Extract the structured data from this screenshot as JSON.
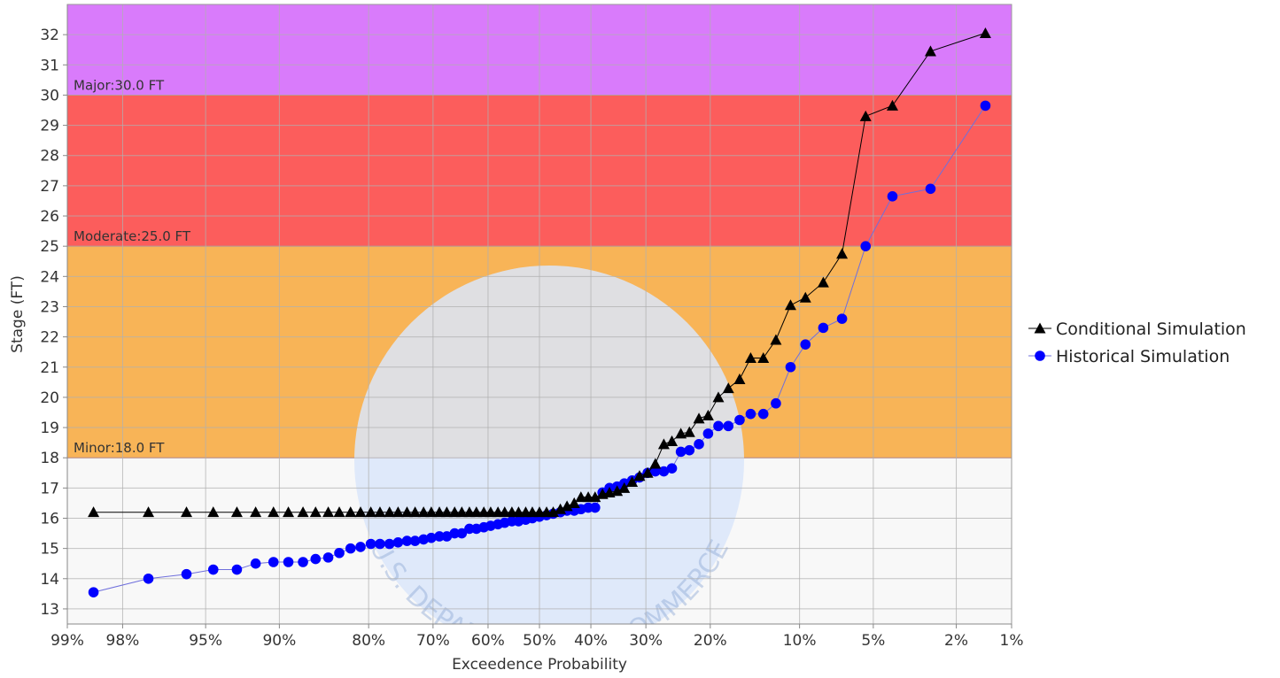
{
  "chart_data": {
    "type": "scatter",
    "xlabel": "Exceedence Probability",
    "ylabel": "Stage (FT)",
    "x_scale": "normal-probability",
    "x_reversed": true,
    "xlim": [
      99,
      1
    ],
    "ylim": [
      12.5,
      33
    ],
    "x_ticks": [
      99,
      98,
      95,
      90,
      80,
      70,
      60,
      50,
      40,
      30,
      20,
      10,
      5,
      2,
      1
    ],
    "x_tick_labels": [
      "99%",
      "98%",
      "95%",
      "90%",
      "80%",
      "70%",
      "60%",
      "50%",
      "40%",
      "30%",
      "20%",
      "10%",
      "5%",
      "2%",
      "1%"
    ],
    "y_ticks": [
      13,
      14,
      15,
      16,
      17,
      18,
      19,
      20,
      21,
      22,
      23,
      24,
      25,
      26,
      27,
      28,
      29,
      30,
      31,
      32
    ],
    "grid": true,
    "legend_position": "right",
    "flood_bands": [
      {
        "label": "Minor:18.0 FT",
        "from": 18,
        "to": 25,
        "color": "#f8b457"
      },
      {
        "label": "Moderate:25.0 FT",
        "from": 25,
        "to": 30,
        "color": "#fc5d5c"
      },
      {
        "label": "Major:30.0 FT",
        "from": 30,
        "to": 33,
        "color": "#d97bfb"
      }
    ],
    "series": [
      {
        "name": "Conditional Simulation",
        "marker": "triangle",
        "color": "#000000",
        "line_color": "#000000",
        "points": [
          [
            98.6,
            16.2
          ],
          [
            97.3,
            16.2
          ],
          [
            95.9,
            16.2
          ],
          [
            94.6,
            16.2
          ],
          [
            93.2,
            16.2
          ],
          [
            91.9,
            16.2
          ],
          [
            90.5,
            16.2
          ],
          [
            89.2,
            16.2
          ],
          [
            87.8,
            16.2
          ],
          [
            86.5,
            16.2
          ],
          [
            85.1,
            16.2
          ],
          [
            83.8,
            16.2
          ],
          [
            82.4,
            16.2
          ],
          [
            81.1,
            16.2
          ],
          [
            79.7,
            16.2
          ],
          [
            78.4,
            16.2
          ],
          [
            77.0,
            16.2
          ],
          [
            75.7,
            16.2
          ],
          [
            74.3,
            16.2
          ],
          [
            73.0,
            16.2
          ],
          [
            71.6,
            16.2
          ],
          [
            70.3,
            16.2
          ],
          [
            68.9,
            16.2
          ],
          [
            67.6,
            16.2
          ],
          [
            66.2,
            16.2
          ],
          [
            64.9,
            16.2
          ],
          [
            63.5,
            16.2
          ],
          [
            62.2,
            16.2
          ],
          [
            60.8,
            16.2
          ],
          [
            59.5,
            16.2
          ],
          [
            58.1,
            16.2
          ],
          [
            56.8,
            16.2
          ],
          [
            55.4,
            16.2
          ],
          [
            54.1,
            16.2
          ],
          [
            52.7,
            16.2
          ],
          [
            51.4,
            16.2
          ],
          [
            50.0,
            16.2
          ],
          [
            48.6,
            16.2
          ],
          [
            47.3,
            16.2
          ],
          [
            45.9,
            16.3
          ],
          [
            44.6,
            16.4
          ],
          [
            43.2,
            16.5
          ],
          [
            41.9,
            16.7
          ],
          [
            40.5,
            16.7
          ],
          [
            39.2,
            16.7
          ],
          [
            37.8,
            16.8
          ],
          [
            36.5,
            16.85
          ],
          [
            35.1,
            16.9
          ],
          [
            33.8,
            17.0
          ],
          [
            32.4,
            17.2
          ],
          [
            31.1,
            17.4
          ],
          [
            29.7,
            17.5
          ],
          [
            28.4,
            17.8
          ],
          [
            27.0,
            18.45
          ],
          [
            25.7,
            18.55
          ],
          [
            24.3,
            18.8
          ],
          [
            23.0,
            18.85
          ],
          [
            21.6,
            19.3
          ],
          [
            20.3,
            19.4
          ],
          [
            18.9,
            20.0
          ],
          [
            17.6,
            20.3
          ],
          [
            16.2,
            20.6
          ],
          [
            14.9,
            21.3
          ],
          [
            13.5,
            21.3
          ],
          [
            12.2,
            21.9
          ],
          [
            10.8,
            23.05
          ],
          [
            9.5,
            23.3
          ],
          [
            8.1,
            23.8
          ],
          [
            6.8,
            24.75
          ],
          [
            5.4,
            29.3
          ],
          [
            4.1,
            29.65
          ],
          [
            2.7,
            31.45
          ],
          [
            1.4,
            32.05
          ]
        ]
      },
      {
        "name": "Historical Simulation",
        "marker": "circle",
        "color": "#0000ff",
        "line_color": "#6f6fdc",
        "points": [
          [
            98.6,
            13.55
          ],
          [
            97.3,
            14.0
          ],
          [
            95.9,
            14.15
          ],
          [
            94.6,
            14.3
          ],
          [
            93.2,
            14.3
          ],
          [
            91.9,
            14.5
          ],
          [
            90.5,
            14.55
          ],
          [
            89.2,
            14.55
          ],
          [
            87.8,
            14.55
          ],
          [
            86.5,
            14.65
          ],
          [
            85.1,
            14.7
          ],
          [
            83.8,
            14.85
          ],
          [
            82.4,
            15.0
          ],
          [
            81.1,
            15.05
          ],
          [
            79.7,
            15.15
          ],
          [
            78.4,
            15.15
          ],
          [
            77.0,
            15.15
          ],
          [
            75.7,
            15.2
          ],
          [
            74.3,
            15.25
          ],
          [
            73.0,
            15.25
          ],
          [
            71.6,
            15.3
          ],
          [
            70.3,
            15.35
          ],
          [
            68.9,
            15.4
          ],
          [
            67.6,
            15.4
          ],
          [
            66.2,
            15.5
          ],
          [
            64.9,
            15.5
          ],
          [
            63.5,
            15.65
          ],
          [
            62.2,
            15.65
          ],
          [
            60.8,
            15.7
          ],
          [
            59.5,
            15.75
          ],
          [
            58.1,
            15.8
          ],
          [
            56.8,
            15.85
          ],
          [
            55.4,
            15.9
          ],
          [
            54.1,
            15.9
          ],
          [
            52.7,
            15.95
          ],
          [
            51.4,
            16.0
          ],
          [
            50.0,
            16.05
          ],
          [
            48.6,
            16.1
          ],
          [
            47.3,
            16.15
          ],
          [
            45.9,
            16.2
          ],
          [
            44.6,
            16.25
          ],
          [
            43.2,
            16.25
          ],
          [
            41.9,
            16.3
          ],
          [
            40.5,
            16.35
          ],
          [
            39.2,
            16.35
          ],
          [
            37.8,
            16.85
          ],
          [
            36.5,
            17.0
          ],
          [
            35.1,
            17.05
          ],
          [
            33.8,
            17.15
          ],
          [
            32.4,
            17.25
          ],
          [
            31.1,
            17.35
          ],
          [
            29.7,
            17.5
          ],
          [
            28.4,
            17.55
          ],
          [
            27.0,
            17.55
          ],
          [
            25.7,
            17.65
          ],
          [
            24.3,
            18.2
          ],
          [
            23.0,
            18.25
          ],
          [
            21.6,
            18.45
          ],
          [
            20.3,
            18.8
          ],
          [
            18.9,
            19.05
          ],
          [
            17.6,
            19.05
          ],
          [
            16.2,
            19.25
          ],
          [
            14.9,
            19.45
          ],
          [
            13.5,
            19.45
          ],
          [
            12.2,
            19.8
          ],
          [
            10.8,
            21.0
          ],
          [
            9.5,
            21.75
          ],
          [
            8.1,
            22.3
          ],
          [
            6.8,
            22.6
          ],
          [
            5.4,
            25.0
          ],
          [
            4.1,
            26.65
          ],
          [
            2.7,
            26.9
          ],
          [
            1.4,
            29.65
          ]
        ]
      }
    ]
  },
  "watermark": {
    "arc_text": "U.S. DEPARTMENT OF COMMERCE",
    "color": "#dbe6fa"
  }
}
